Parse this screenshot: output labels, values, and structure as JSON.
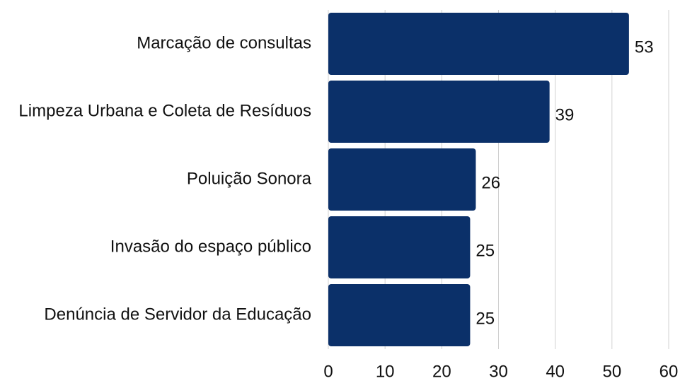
{
  "chart_data": {
    "type": "barh",
    "categories": [
      "Marcação de consultas",
      "Limpeza Urbana e Coleta de Resíduos",
      "Poluição Sonora",
      "Invasão do espaço público",
      "Denúncia de Servidor da Educação"
    ],
    "values": [
      53,
      39,
      26,
      25,
      25
    ],
    "color": "#0b3069",
    "xlim": [
      0,
      60
    ],
    "xticks": [
      0,
      10,
      20,
      30,
      40,
      50,
      60
    ],
    "grid": true
  }
}
